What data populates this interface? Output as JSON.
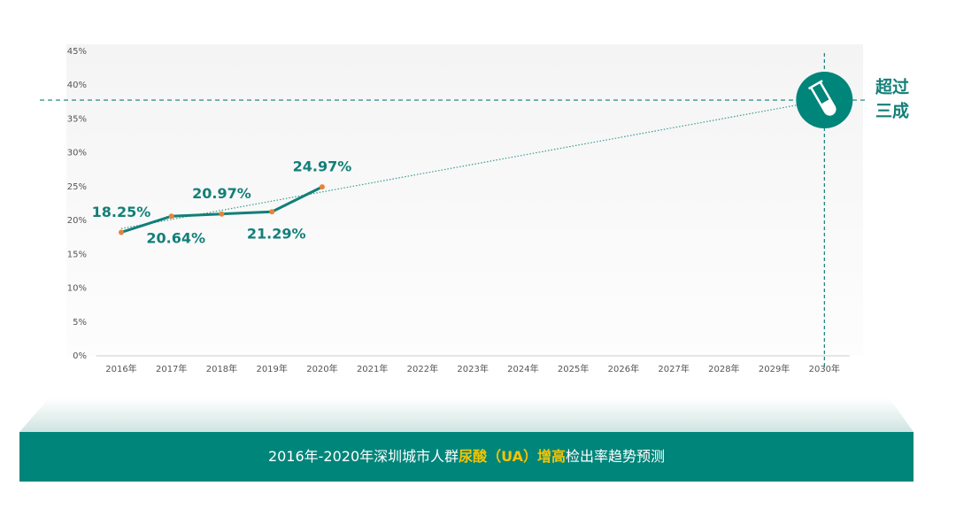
{
  "chart_data": {
    "type": "line",
    "categories": [
      "2016年",
      "2017年",
      "2018年",
      "2019年",
      "2020年",
      "2021年",
      "2022年",
      "2023年",
      "2024年",
      "2025年",
      "2026年",
      "2027年",
      "2028年",
      "2029年",
      "2030年"
    ],
    "series": [
      {
        "color": "#127f78",
        "marker_color": "#e8833a",
        "values": [
          18.25,
          20.64,
          20.97,
          21.29,
          24.97,
          null,
          null,
          null,
          null,
          null,
          null,
          null,
          null,
          null,
          null
        ],
        "value_labels": [
          "18.25%",
          "20.64%",
          "20.97%",
          "21.29%",
          "24.97%",
          null,
          null,
          null,
          null,
          null,
          null,
          null,
          null,
          null,
          null
        ]
      }
    ],
    "trend_line": {
      "x": [
        "2016年",
        "2030年"
      ],
      "values": [
        18.8,
        37.8
      ],
      "color": "#3a9a8f"
    },
    "reference_line": {
      "value": 37.8,
      "x": "2030年",
      "color": "#127f78"
    },
    "annotation": [
      "超过",
      "三成"
    ],
    "ylim": [
      0,
      45
    ],
    "yticks": [
      {
        "value": 0,
        "label": "0%"
      },
      {
        "value": 5,
        "label": "5%"
      },
      {
        "value": 10,
        "label": "10%"
      },
      {
        "value": 15,
        "label": "15%"
      },
      {
        "value": 20,
        "label": "20%"
      },
      {
        "value": 25,
        "label": "25%"
      },
      {
        "value": 30,
        "label": "30%"
      },
      {
        "value": 35,
        "label": "35%"
      },
      {
        "value": 40,
        "label": "40%"
      },
      {
        "value": 45,
        "label": "45%"
      }
    ],
    "caption": [
      "2016年-2020年深圳城市人群",
      "尿酸（UA）增高",
      "检出率趋势预测"
    ]
  }
}
